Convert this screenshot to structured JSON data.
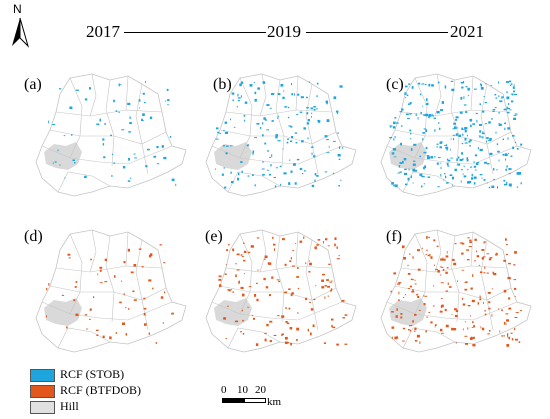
{
  "north_label": "N",
  "timeline": {
    "year_start": "2017",
    "year_mid": "2019",
    "year_end": "2021"
  },
  "panels": [
    {
      "label": "(a)",
      "year": "2017",
      "layer": "RCF (STOB)"
    },
    {
      "label": "(b)",
      "year": "2019",
      "layer": "RCF (STOB)"
    },
    {
      "label": "(c)",
      "year": "2021",
      "layer": "RCF (STOB)"
    },
    {
      "label": "(d)",
      "year": "2017",
      "layer": "RCF (BTFDOB)"
    },
    {
      "label": "(e)",
      "year": "2019",
      "layer": "RCF (BTFDOB)"
    },
    {
      "label": "(f)",
      "year": "2021",
      "layer": "RCF (BTFDOB)"
    }
  ],
  "legend": {
    "items": [
      {
        "label": "RCF (STOB)",
        "color": "#1fa5dd"
      },
      {
        "label": "RCF (BTFDOB)",
        "color": "#e2571c"
      },
      {
        "label": "Hill",
        "color": "#e0e0e0"
      }
    ]
  },
  "scale_bar": {
    "ticks": [
      "0",
      "10",
      "20"
    ],
    "unit": "km"
  },
  "colors": {
    "boundary": "#c4c4c4",
    "hill": "#d9d9d9",
    "stob": "#1fa5dd",
    "btfdob": "#e2571c"
  }
}
